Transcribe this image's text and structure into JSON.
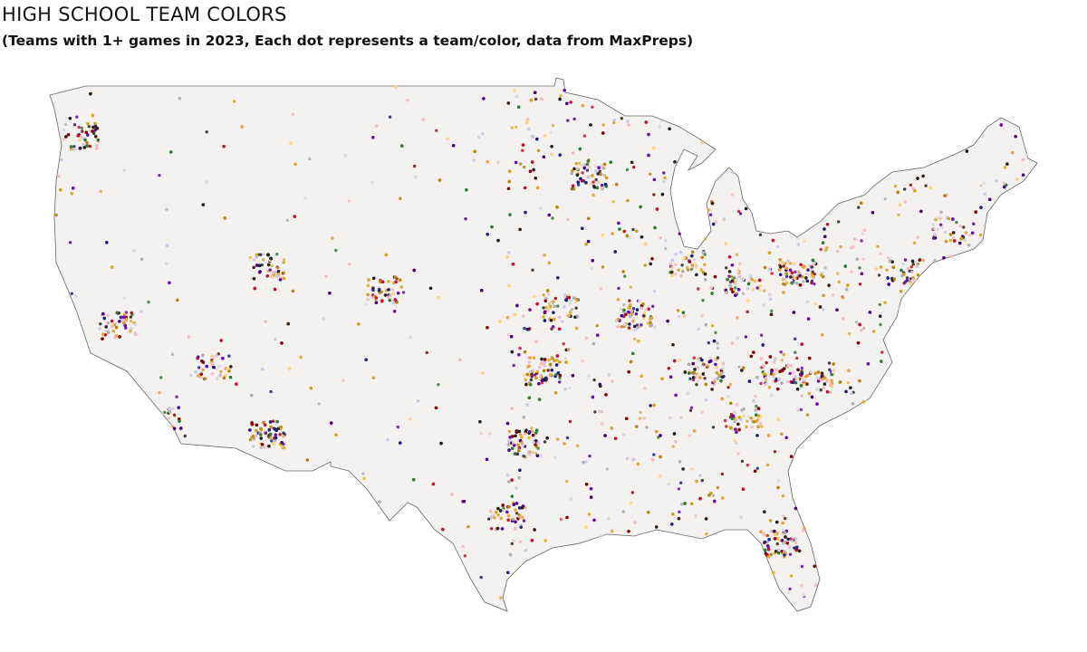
{
  "header": {
    "title": "HIGH SCHOOL TEAM COLORS",
    "subtitle": "(Teams with 1+ games in 2023, Each dot represents a team/color, data from MaxPreps)"
  }
}
